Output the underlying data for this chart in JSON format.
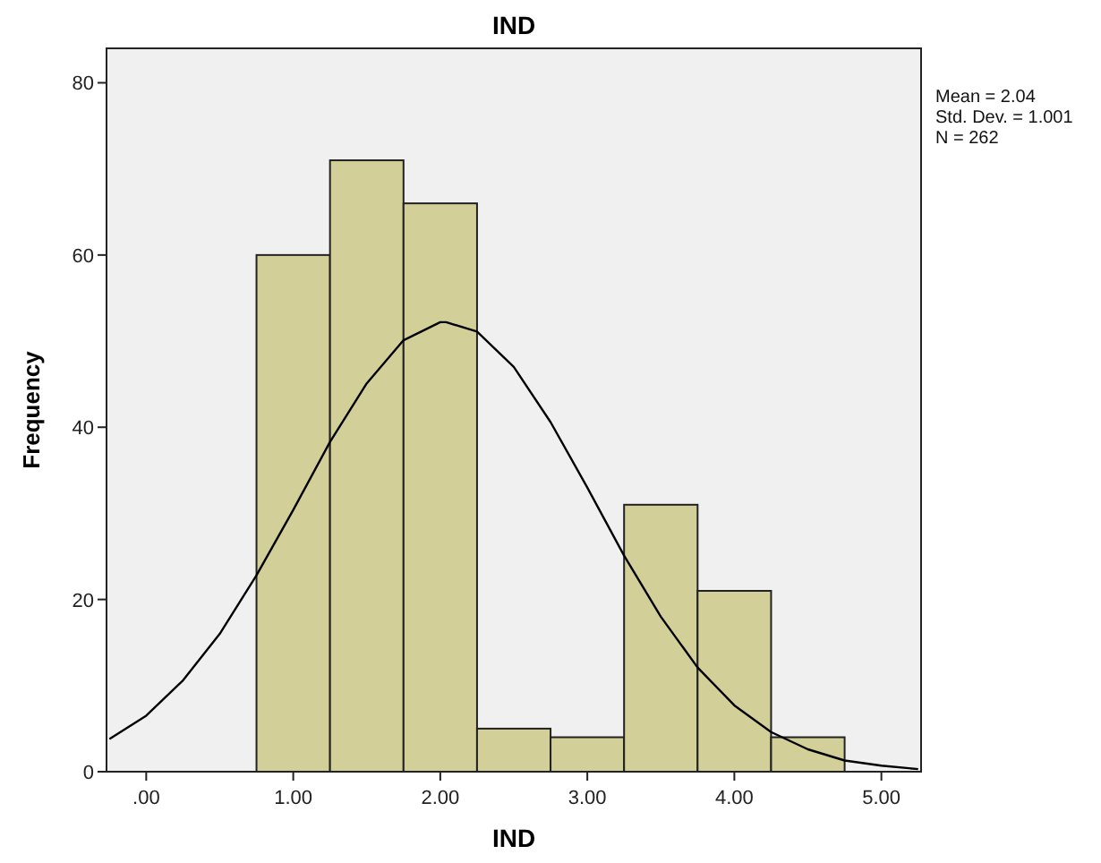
{
  "chart_data": {
    "type": "histogram",
    "title": "IND",
    "xlabel": "IND",
    "ylabel": "Frequency",
    "bins": [
      0.75,
      1.25,
      1.75,
      2.25,
      2.75,
      3.25,
      3.75,
      4.25,
      4.75
    ],
    "values": [
      60,
      71,
      66,
      5,
      4,
      31,
      21,
      4
    ],
    "color": "#d3cf98",
    "series": [
      {
        "type": "line",
        "color": "#000000",
        "x": [
          -0.25,
          0,
          0.25,
          0.5,
          0.75,
          1,
          1.25,
          1.5,
          1.75,
          2,
          2.04,
          2.25,
          2.5,
          2.75,
          3,
          3.25,
          3.5,
          3.75,
          4,
          4.25,
          4.5,
          4.75,
          5,
          5.25
        ],
        "values": [
          3.8,
          6.5,
          10.6,
          16.0,
          22.8,
          30.4,
          38.3,
          45.1,
          50.1,
          52.2,
          52.2,
          51.1,
          47.0,
          40.6,
          33.0,
          25.1,
          18.0,
          12.1,
          7.7,
          4.6,
          2.6,
          1.3,
          0.7,
          0.3
        ]
      }
    ],
    "xlim": [
      -0.27,
      5.27
    ],
    "ylim": [
      0,
      84
    ],
    "xticks": [
      {
        "value": 0,
        "label": ".00"
      },
      {
        "value": 1,
        "label": "1.00"
      },
      {
        "value": 2,
        "label": "2.00"
      },
      {
        "value": 3,
        "label": "3.00"
      },
      {
        "value": 4,
        "label": "4.00"
      },
      {
        "value": 5,
        "label": "5.00"
      }
    ],
    "yticks": [
      0,
      20,
      40,
      60,
      80
    ],
    "marker": "none",
    "annotations": [
      "Mean = 2.04",
      "Std. Dev. = 1.001",
      "N = 262"
    ]
  }
}
